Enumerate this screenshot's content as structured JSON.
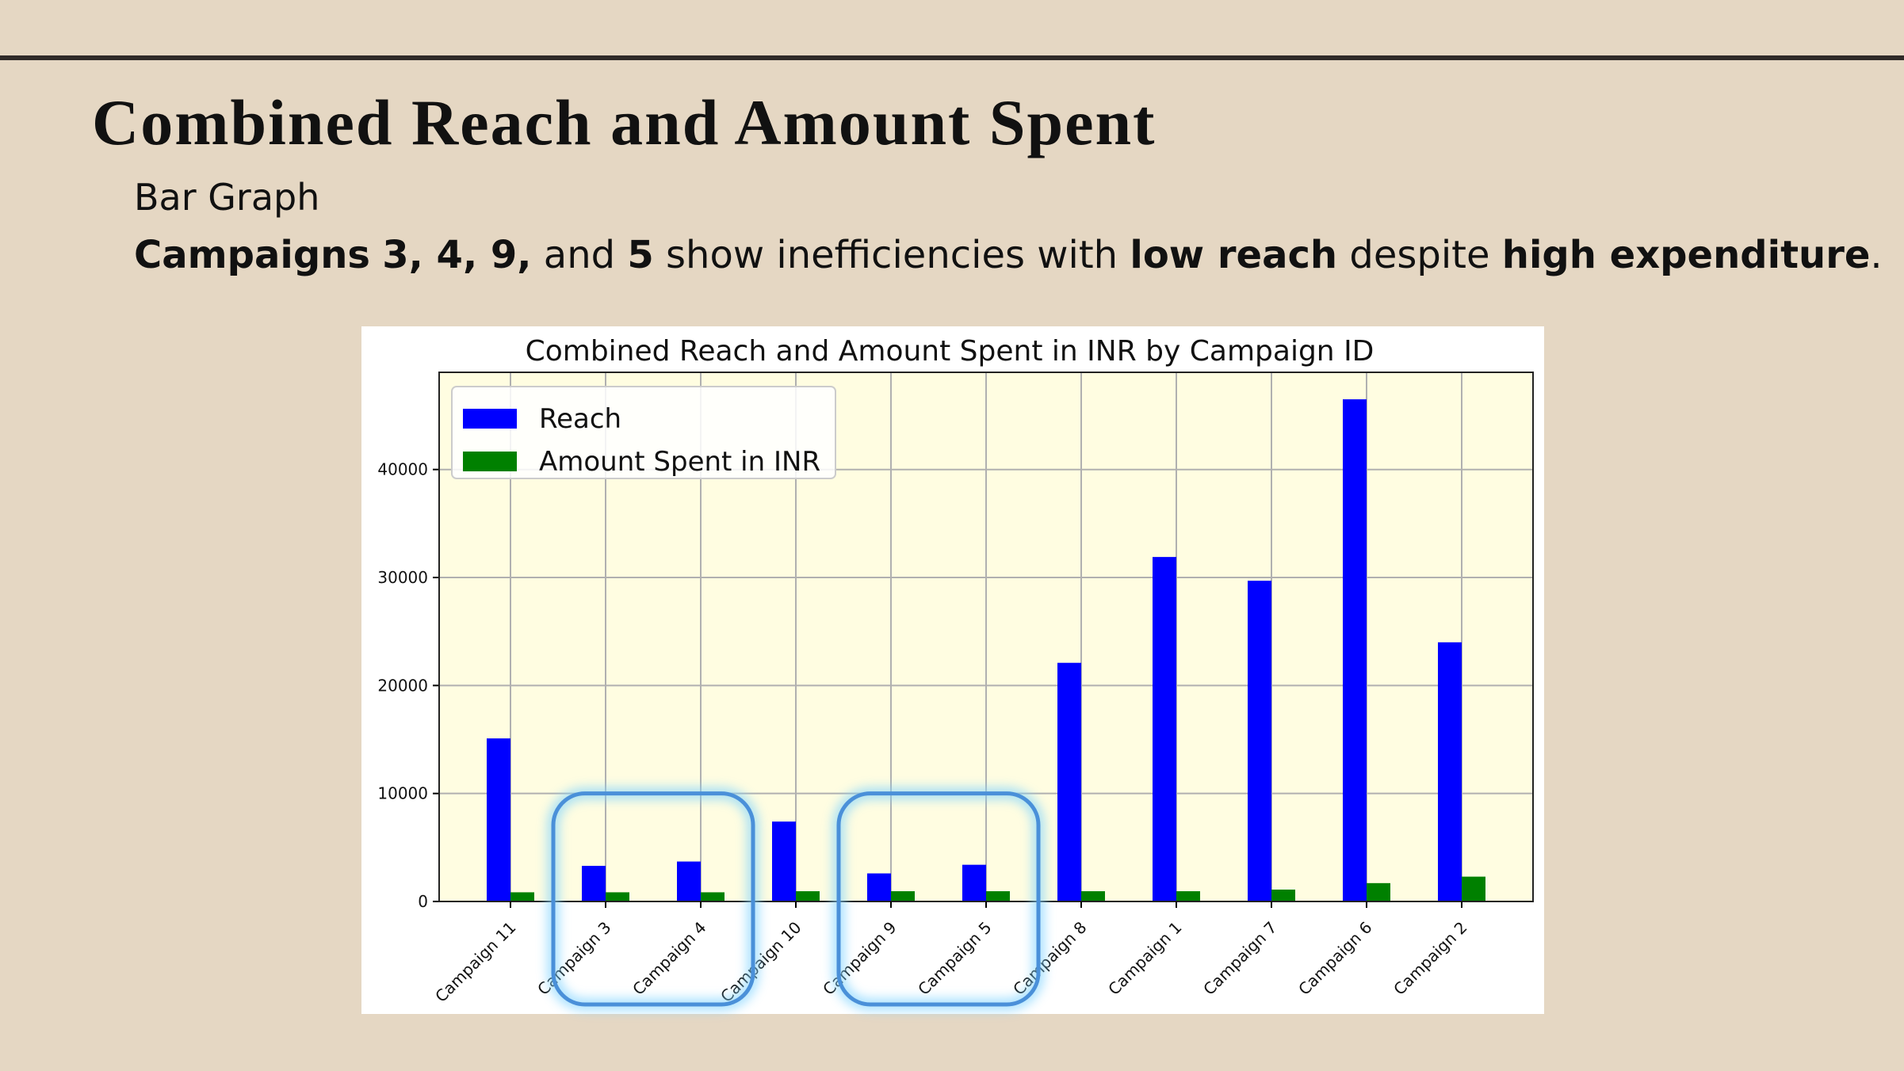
{
  "slide": {
    "title": "Combined Reach and Amount Spent",
    "subtitle": "Bar Graph",
    "finding": {
      "campaigns_label": "Campaigns",
      "campaign_list": "3, 4, 9,",
      "and_word": "and",
      "last_campaign": "5",
      "middle_text": "show inefficiencies with",
      "low_reach": "low reach",
      "despite_word": "despite",
      "high_expenditure": "high expenditure",
      "period": "."
    }
  },
  "colors": {
    "background": "#e5d7c3",
    "plot_background": "#fffde1",
    "reach": "#0000ff",
    "amount_spent": "#008000",
    "highlight": "#4a90d9"
  },
  "chart_data": {
    "type": "bar",
    "title": "Combined Reach and Amount Spent in INR by Campaign ID",
    "xlabel": "",
    "ylabel": "",
    "categories": [
      "Campaign 11",
      "Campaign 3",
      "Campaign 4",
      "Campaign 10",
      "Campaign 9",
      "Campaign 5",
      "Campaign 8",
      "Campaign 1",
      "Campaign 7",
      "Campaign 6",
      "Campaign 2"
    ],
    "series": [
      {
        "name": "Reach",
        "color": "#0000ff",
        "values": [
          15100,
          3300,
          3700,
          7400,
          2600,
          3400,
          22100,
          31900,
          29700,
          46500,
          24000
        ]
      },
      {
        "name": "Amount Spent in INR",
        "color": "#008000",
        "values": [
          850,
          850,
          850,
          950,
          950,
          950,
          950,
          950,
          1100,
          1700,
          2300
        ]
      }
    ],
    "ylim": [
      0,
      49000
    ],
    "yticks": [
      "0",
      "10000",
      "20000",
      "30000",
      "40000"
    ],
    "grid": true,
    "legend": "top-left",
    "highlighted_groups": [
      [
        "Campaign 3",
        "Campaign 4"
      ],
      [
        "Campaign 9",
        "Campaign 5"
      ]
    ]
  }
}
